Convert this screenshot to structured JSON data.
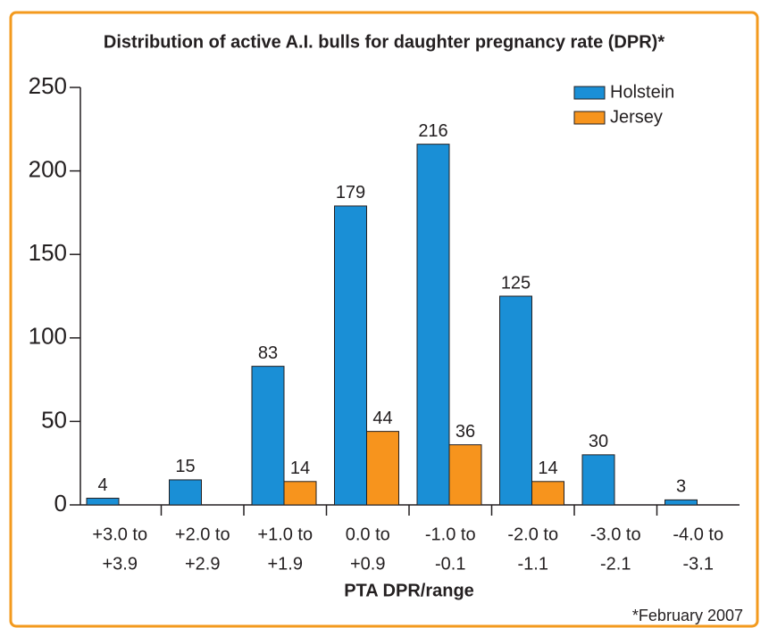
{
  "chart_data": {
    "type": "bar",
    "title": "Distribution of active A.I. bulls for daughter pregnancy rate (DPR)*",
    "x_label": "PTA DPR/range",
    "footnote": "*February 2007",
    "categories": [
      [
        "+3.0 to",
        "+3.9"
      ],
      [
        "+2.0 to",
        "+2.9"
      ],
      [
        "+1.0 to",
        "+1.9"
      ],
      [
        "0.0 to",
        "+0.9"
      ],
      [
        "-1.0 to",
        "-0.1"
      ],
      [
        "-2.0 to",
        "-1.1"
      ],
      [
        "-3.0 to",
        "-2.1"
      ],
      [
        "-4.0 to",
        "-3.1"
      ]
    ],
    "series": [
      {
        "name": "Holstein",
        "color": "#1a8fd6",
        "values": [
          4,
          15,
          83,
          179,
          216,
          125,
          30,
          3
        ]
      },
      {
        "name": "Jersey",
        "color": "#f7941d",
        "values": [
          null,
          null,
          14,
          44,
          36,
          14,
          null,
          null
        ]
      }
    ],
    "ylim": [
      0,
      250
    ],
    "yticks": [
      0,
      50,
      100,
      150,
      200,
      250
    ],
    "legend": "upper right"
  }
}
